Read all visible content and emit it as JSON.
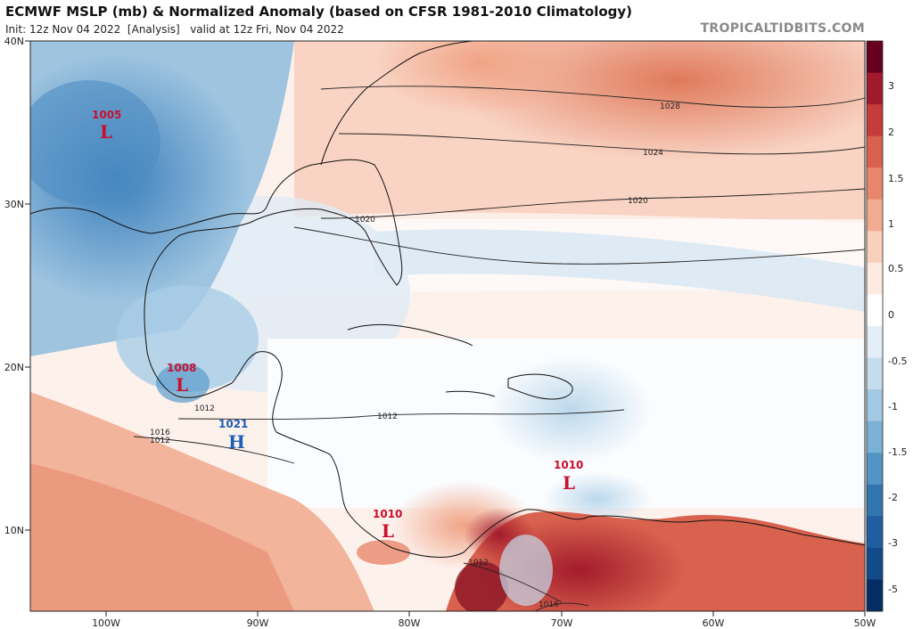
{
  "header": {
    "title": "ECMWF MSLP (mb) & Normalized Anomaly (based on CFSR 1981-2010 Climatology)",
    "init": "Init: 12z Nov 04 2022",
    "analysis": "[Analysis]",
    "valid": "valid at 12z Fri, Nov 04 2022",
    "brand": "TROPICALTIDBITS.COM"
  },
  "map": {
    "lat_labels": [
      "40N",
      "30N",
      "20N",
      "10N"
    ],
    "lon_labels": [
      "100W",
      "90W",
      "80W",
      "70W",
      "60W",
      "50W"
    ],
    "contour_labels": [
      "1028",
      "1024",
      "1020",
      "1020",
      "1012",
      "1012",
      "1016",
      "1012",
      "1012",
      "1016"
    ],
    "pressure_centers": [
      {
        "value": "1005",
        "type": "L",
        "color": "#c8102e"
      },
      {
        "value": "1008",
        "type": "L",
        "color": "#c8102e"
      },
      {
        "value": "1021",
        "type": "H",
        "color": "#1f5fb5"
      },
      {
        "value": "1010",
        "type": "L",
        "color": "#c8102e"
      },
      {
        "value": "1010",
        "type": "L",
        "color": "#c8102e"
      }
    ]
  },
  "colorbar": {
    "labels": [
      "3",
      "2",
      "1.5",
      "1",
      "0.5",
      "0",
      "-0.5",
      "-1",
      "-1.5",
      "-2",
      "-3",
      "-5"
    ],
    "colors": [
      "#67001f",
      "#a01a2c",
      "#c63b3b",
      "#d9624f",
      "#e8876c",
      "#f2ab8f",
      "#f9d0bc",
      "#fdebe1",
      "#ffffff",
      "#e3eef6",
      "#c4dcec",
      "#a2c8e2",
      "#7bb1d6",
      "#5295c4",
      "#3276b0",
      "#205ea0",
      "#124a8a",
      "#062d63"
    ]
  }
}
